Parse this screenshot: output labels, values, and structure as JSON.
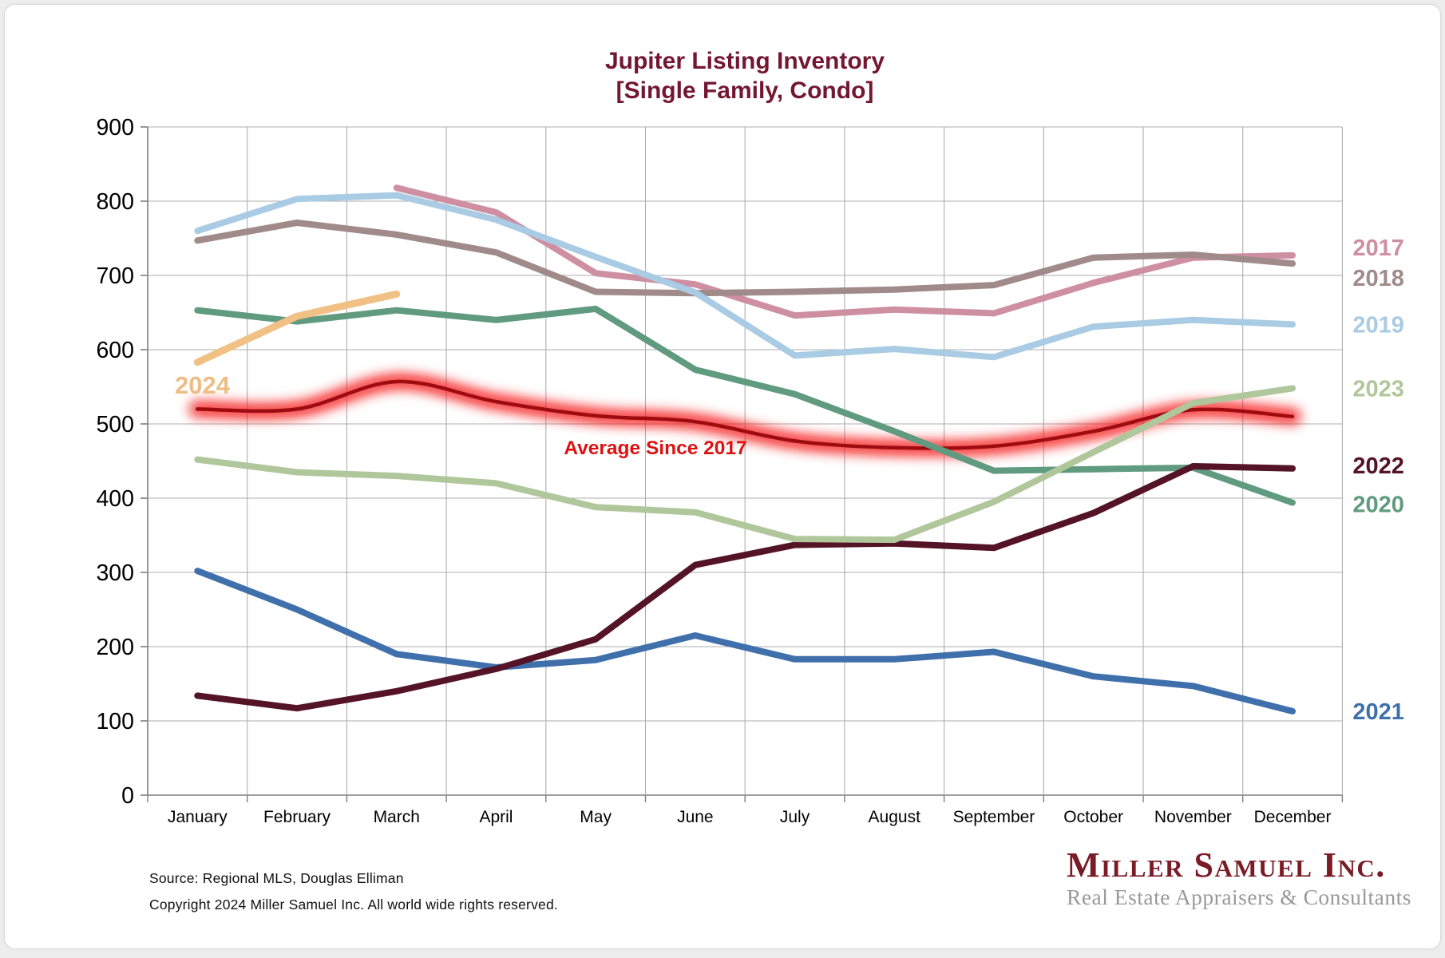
{
  "title": {
    "line1": "Jupiter Listing Inventory",
    "line2": "[Single Family, Condo]",
    "color": "#731731"
  },
  "chart_data": {
    "type": "line",
    "categories": [
      "January",
      "February",
      "March",
      "April",
      "May",
      "June",
      "July",
      "August",
      "September",
      "October",
      "November",
      "December"
    ],
    "y_ticks": [
      0,
      100,
      200,
      300,
      400,
      500,
      600,
      700,
      800,
      900
    ],
    "ylim": [
      0,
      900
    ],
    "grid": true,
    "x_axis_mode": "between-ticks",
    "legend_position": "right-of-line-ends",
    "series": [
      {
        "name": "Average Since 2017",
        "key": "avg",
        "color": "#9e0b10",
        "glow_color": "#f51414",
        "smooth": true,
        "width": 4.5,
        "right_label": false,
        "values": [
          520,
          520,
          557,
          530,
          511,
          503,
          477,
          468,
          470,
          490,
          519,
          510
        ]
      },
      {
        "name": "2017",
        "key": "2017",
        "color": "#cf8fa3",
        "width": 8,
        "right_label": true,
        "values": [
          null,
          null,
          818,
          785,
          703,
          688,
          646,
          654,
          649,
          690,
          724,
          727
        ]
      },
      {
        "name": "2018",
        "key": "2018",
        "color": "#a18a8a",
        "width": 8,
        "right_label": true,
        "values": [
          747,
          771,
          755,
          731,
          678,
          676,
          678,
          681,
          687,
          724,
          728,
          716
        ]
      },
      {
        "name": "2019",
        "key": "2019",
        "color": "#a9cbe4",
        "width": 8,
        "right_label": true,
        "values": [
          760,
          803,
          808,
          775,
          725,
          677,
          592,
          601,
          590,
          631,
          640,
          634
        ]
      },
      {
        "name": "2020",
        "key": "2020",
        "color": "#609b7f",
        "width": 8,
        "right_label": true,
        "values": [
          653,
          638,
          653,
          640,
          655,
          573,
          540,
          490,
          437,
          439,
          441,
          394
        ]
      },
      {
        "name": "2021",
        "key": "2021",
        "color": "#4070ac",
        "width": 8,
        "right_label": true,
        "values": [
          302,
          250,
          190,
          172,
          182,
          215,
          183,
          183,
          193,
          160,
          147,
          113
        ]
      },
      {
        "name": "2022",
        "key": "2022",
        "color": "#541326",
        "width": 8,
        "right_label": true,
        "values": [
          134,
          117,
          140,
          170,
          210,
          310,
          337,
          339,
          333,
          380,
          443,
          440
        ]
      },
      {
        "name": "2023",
        "key": "2023",
        "color": "#afc79b",
        "width": 8,
        "right_label": true,
        "values": [
          452,
          435,
          430,
          420,
          388,
          381,
          345,
          344,
          395,
          462,
          528,
          548
        ]
      },
      {
        "name": "2024",
        "key": "2024",
        "color": "#f1c085",
        "width": 9,
        "right_label": false,
        "values": [
          583,
          645,
          675,
          null,
          null,
          null,
          null,
          null,
          null,
          null,
          null,
          null
        ]
      }
    ]
  },
  "annotations": {
    "avg_label": "Average  Since 2017",
    "avg_label_color": "#de1111",
    "year_2024_label": "2024",
    "year_2024_color": "#edbd85"
  },
  "footer": {
    "source_line1": "Source: Regional MLS, Douglas Elliman",
    "source_line2": "Copyright 2024 Miller Samuel Inc.  All world wide rights reserved."
  },
  "logo": {
    "name": "Miller Samuel Inc.",
    "tagline": "Real Estate Appraisers & Consultants"
  }
}
